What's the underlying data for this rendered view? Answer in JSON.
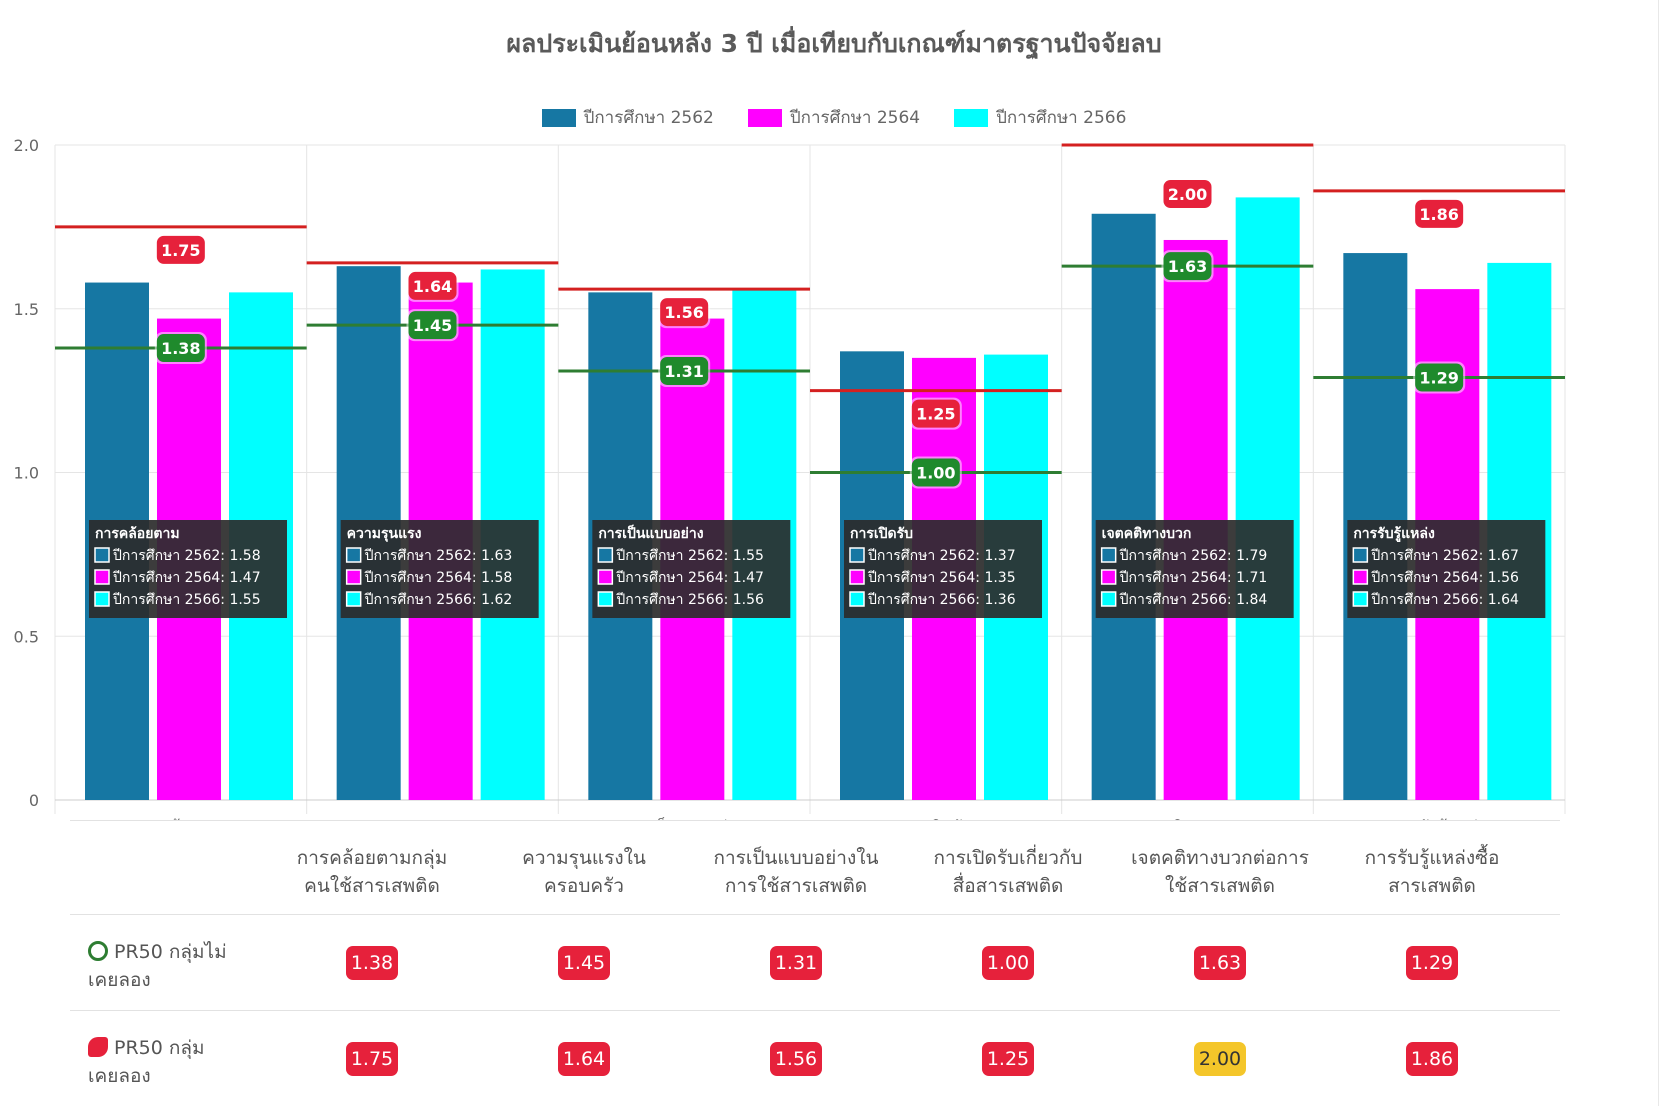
{
  "title": "ผลประเมินย้อนหลัง 3 ปี เมื่อเทียบกับเกณฑ์มาตรฐานปัจจัยลบ",
  "colors": {
    "series": [
      "#1677a3",
      "#ff00ff",
      "#00ffff"
    ],
    "tried_line": "#d42020",
    "never_line": "#2e7d32",
    "tried_badge": "#e6213b",
    "never_badge": "#1f8a2c",
    "table_badge": "#e6213b",
    "table_badge_highlight": "#f4c62a",
    "tooltip_bg": "#2b2b2b"
  },
  "chart_data": {
    "type": "bar",
    "title": "ผลประเมินย้อนหลัง 3 ปี เมื่อเทียบกับเกณฑ์มาตรฐานปัจจัยลบ",
    "categories": [
      "การคล้อยตาม",
      "ความรุนแรง",
      "การเป็นแบบอย่าง",
      "การเปิดรับ",
      "เจตคติทางบวก",
      "การรับรู้แหล่ง"
    ],
    "series": [
      {
        "name": "ปีการศึกษา 2562",
        "values": [
          1.58,
          1.63,
          1.55,
          1.37,
          1.79,
          1.67
        ]
      },
      {
        "name": "ปีการศึกษา 2564",
        "values": [
          1.47,
          1.58,
          1.47,
          1.35,
          1.71,
          1.56
        ]
      },
      {
        "name": "ปีการศึกษา 2566",
        "values": [
          1.55,
          1.62,
          1.56,
          1.36,
          1.84,
          1.64
        ]
      }
    ],
    "reference_lines": {
      "pr50_tried": [
        "1.75",
        "1.64",
        "1.56",
        "1.25",
        "2.00",
        "1.86"
      ],
      "pr50_never": [
        "1.38",
        "1.45",
        "1.31",
        "1.00",
        "1.63",
        "1.29"
      ]
    },
    "yticks": [
      "0",
      "0.5",
      "1.0",
      "1.5",
      "2.0"
    ],
    "ylim": [
      0,
      2.0
    ],
    "grid": true,
    "legend": "top-center",
    "tooltips": [
      {
        "title": "การคล้อยตาม",
        "lines": [
          "ปีการศึกษา 2562: 1.58",
          "ปีการศึกษา 2564: 1.47",
          "ปีการศึกษา 2566: 1.55"
        ]
      },
      {
        "title": "ความรุนแรง",
        "lines": [
          "ปีการศึกษา 2562: 1.63",
          "ปีการศึกษา 2564: 1.58",
          "ปีการศึกษา 2566: 1.62"
        ]
      },
      {
        "title": "การเป็นแบบอย่าง",
        "lines": [
          "ปีการศึกษา 2562: 1.55",
          "ปีการศึกษา 2564: 1.47",
          "ปีการศึกษา 2566: 1.56"
        ]
      },
      {
        "title": "การเปิดรับ",
        "lines": [
          "ปีการศึกษา 2562: 1.37",
          "ปีการศึกษา 2564: 1.35",
          "ปีการศึกษา 2566: 1.36"
        ]
      },
      {
        "title": "เจตคติทางบวก",
        "lines": [
          "ปีการศึกษา 2562: 1.79",
          "ปีการศึกษา 2564: 1.71",
          "ปีการศึกษา 2566: 1.84"
        ]
      },
      {
        "title": "การรับรู้แหล่ง",
        "lines": [
          "ปีการศึกษา 2562: 1.67",
          "ปีการศึกษา 2564: 1.56",
          "ปีการศึกษา 2566: 1.64"
        ]
      }
    ]
  },
  "table": {
    "headers": [
      [
        "การคล้อยตามกลุ่ม",
        "คนใช้สารเสพติด"
      ],
      [
        "ความรุนแรงใน",
        "ครอบครัว"
      ],
      [
        "การเป็นแบบอย่างใน",
        "การใช้สารเสพติด"
      ],
      [
        "การเปิดรับเกี่ยวกับ",
        "สื่อสารเสพติด"
      ],
      [
        "เจตคติทางบวกต่อการ",
        "ใช้สารเสพติด"
      ],
      [
        "การรับรู้แหล่งซื้อ",
        "สารเสพติด"
      ]
    ],
    "rows": [
      {
        "icon": "no-drugs-icon",
        "label_line1": "PR50 กลุ่มไม่",
        "label_line2": "เคยลอง",
        "values": [
          "1.38",
          "1.45",
          "1.31",
          "1.00",
          "1.63",
          "1.29"
        ],
        "highlight": [
          false,
          false,
          false,
          false,
          false,
          false
        ]
      },
      {
        "icon": "pills-icon",
        "label_line1": "PR50 กลุ่ม",
        "label_line2": "เคยลอง",
        "values": [
          "1.75",
          "1.64",
          "1.56",
          "1.25",
          "2.00",
          "1.86"
        ],
        "highlight": [
          false,
          false,
          false,
          false,
          true,
          false
        ]
      }
    ]
  }
}
